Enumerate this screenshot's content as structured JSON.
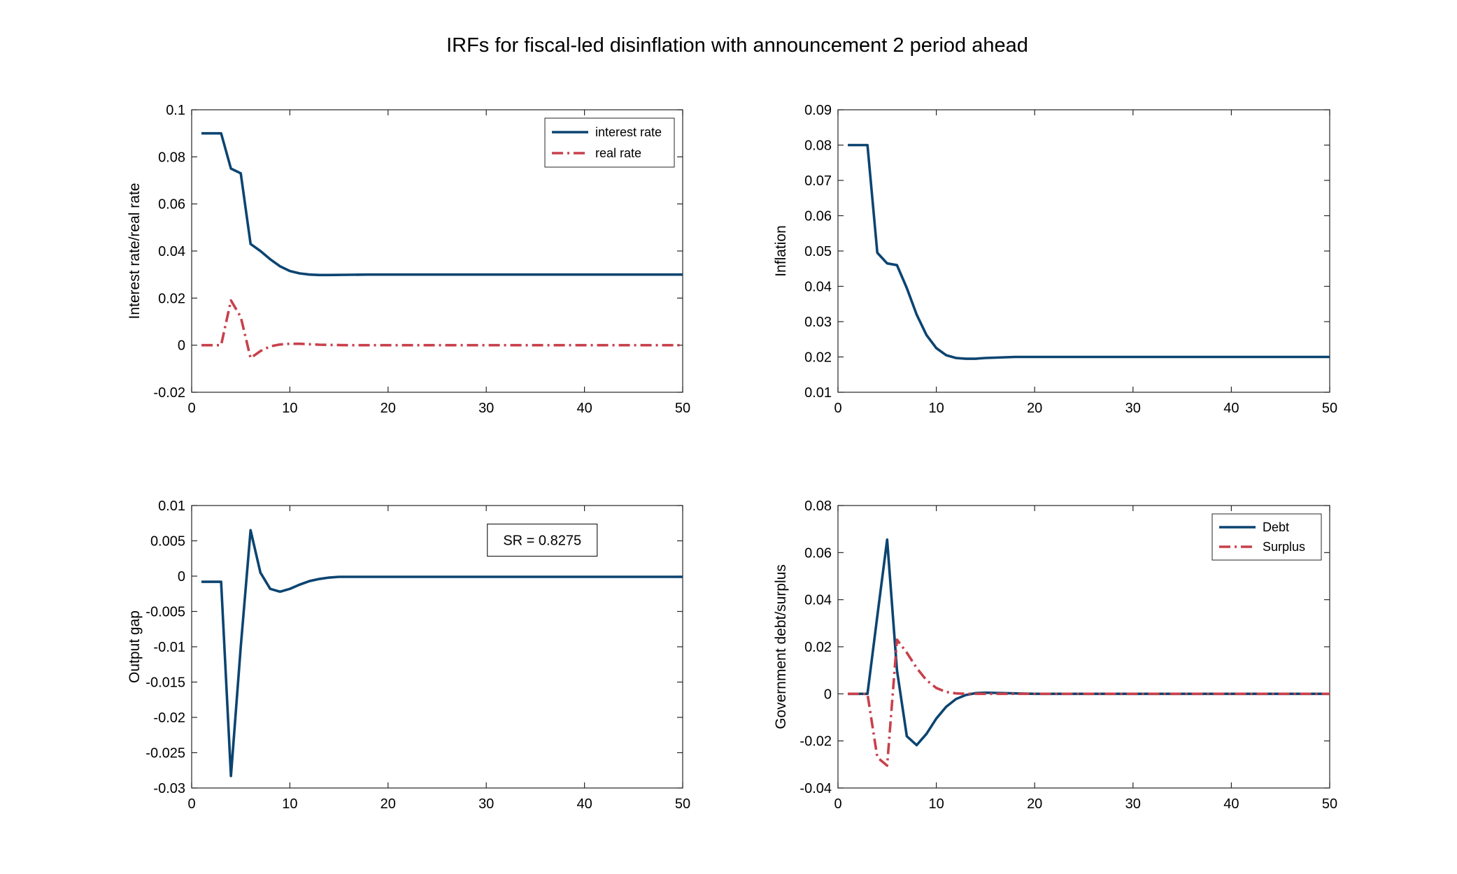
{
  "figure": {
    "title": "IRFs for fiscal-led disinflation with announcement 2 period ahead"
  },
  "colors": {
    "blue": "#0b4471",
    "red": "#c8404b",
    "axis": "#262626"
  },
  "chart_data": [
    {
      "id": "panel-interest",
      "type": "line",
      "title": "",
      "xlabel": "",
      "ylabel": "Interest rate/real rate",
      "xlim": [
        0,
        50
      ],
      "ylim": [
        -0.02,
        0.1
      ],
      "xticks": [
        0,
        10,
        20,
        30,
        40,
        50
      ],
      "yticks": [
        -0.02,
        0,
        0.02,
        0.04,
        0.06,
        0.08,
        0.1
      ],
      "ytick_labels": [
        "-0.02",
        "0",
        "0.02",
        "0.04",
        "0.06",
        "0.08",
        "0.1"
      ],
      "grid": false,
      "legend": "top-right",
      "series": [
        {
          "name": "interest rate",
          "color": "#0b4471",
          "style": "solid",
          "x": [
            1,
            2,
            3,
            4,
            5,
            6,
            7,
            8,
            9,
            10,
            11,
            12,
            13,
            14,
            16,
            18,
            20,
            25,
            30,
            40,
            50
          ],
          "y": [
            0.09,
            0.09,
            0.09,
            0.075,
            0.073,
            0.043,
            0.04,
            0.0365,
            0.0335,
            0.0315,
            0.0305,
            0.03,
            0.0298,
            0.0298,
            0.0299,
            0.03,
            0.03,
            0.03,
            0.03,
            0.03,
            0.03
          ]
        },
        {
          "name": "real rate",
          "color": "#c8404b",
          "style": "dashdot",
          "x": [
            1,
            2,
            3,
            4,
            5,
            6,
            7,
            8,
            9,
            10,
            11,
            12,
            13,
            14,
            16,
            20,
            30,
            40,
            50
          ],
          "y": [
            0,
            0,
            0,
            0.019,
            0.012,
            -0.0055,
            -0.0025,
            -0.0005,
            0.0003,
            0.0006,
            0.0006,
            0.0004,
            0.0002,
            0.0001,
            0,
            0,
            0,
            0,
            0
          ]
        }
      ]
    },
    {
      "id": "panel-inflation",
      "type": "line",
      "title": "",
      "xlabel": "",
      "ylabel": "Inflation",
      "xlim": [
        0,
        50
      ],
      "ylim": [
        0.01,
        0.09
      ],
      "xticks": [
        0,
        10,
        20,
        30,
        40,
        50
      ],
      "yticks": [
        0.01,
        0.02,
        0.03,
        0.04,
        0.05,
        0.06,
        0.07,
        0.08,
        0.09
      ],
      "ytick_labels": [
        "0.01",
        "0.02",
        "0.03",
        "0.04",
        "0.05",
        "0.06",
        "0.07",
        "0.08",
        "0.09"
      ],
      "grid": false,
      "legend": "none",
      "series": [
        {
          "color": "#0b4471",
          "style": "solid",
          "x": [
            1,
            2,
            3,
            4,
            5,
            6,
            7,
            8,
            9,
            10,
            11,
            12,
            13,
            14,
            15,
            16,
            18,
            20,
            30,
            40,
            50
          ],
          "y": [
            0.08,
            0.08,
            0.08,
            0.0495,
            0.0465,
            0.046,
            0.0395,
            0.032,
            0.0262,
            0.0225,
            0.0205,
            0.0197,
            0.0195,
            0.0195,
            0.0197,
            0.0198,
            0.02,
            0.02,
            0.02,
            0.02,
            0.02
          ]
        }
      ]
    },
    {
      "id": "panel-output",
      "type": "line",
      "title": "",
      "xlabel": "",
      "ylabel": "Output gap",
      "xlim": [
        0,
        50
      ],
      "ylim": [
        -0.03,
        0.01
      ],
      "xticks": [
        0,
        10,
        20,
        30,
        40,
        50
      ],
      "yticks": [
        -0.03,
        -0.025,
        -0.02,
        -0.015,
        -0.01,
        -0.005,
        0,
        0.005,
        0.01
      ],
      "ytick_labels": [
        "-0.03",
        "-0.025",
        "-0.02",
        "-0.015",
        "-0.01",
        "-0.005",
        "0",
        "0.005",
        "0.01"
      ],
      "grid": false,
      "legend": "none",
      "annotation": {
        "text": "SR = 0.8275",
        "x": 35.7,
        "y": 0.0051
      },
      "series": [
        {
          "color": "#0b4471",
          "style": "solid",
          "x": [
            1,
            2,
            3,
            4,
            5,
            6,
            7,
            8,
            9,
            10,
            11,
            12,
            13,
            14,
            15,
            16,
            18,
            20,
            30,
            40,
            50
          ],
          "y": [
            -0.0008,
            -0.0008,
            -0.0008,
            -0.0283,
            -0.01,
            0.0065,
            0.0005,
            -0.0018,
            -0.0022,
            -0.0018,
            -0.0012,
            -0.0007,
            -0.0004,
            -0.0002,
            -0.0001,
            -0.0001,
            -0.0001,
            -0.0001,
            -0.0001,
            -0.0001,
            -0.0001
          ]
        }
      ]
    },
    {
      "id": "panel-debt",
      "type": "line",
      "title": "",
      "xlabel": "",
      "ylabel": "Government debt/surplus",
      "xlim": [
        0,
        50
      ],
      "ylim": [
        -0.04,
        0.08
      ],
      "xticks": [
        0,
        10,
        20,
        30,
        40,
        50
      ],
      "yticks": [
        -0.04,
        -0.02,
        0,
        0.02,
        0.04,
        0.06,
        0.08
      ],
      "ytick_labels": [
        "-0.04",
        "-0.02",
        "0",
        "0.02",
        "0.04",
        "0.06",
        "0.08"
      ],
      "grid": false,
      "legend": "top-right",
      "series": [
        {
          "name": "Debt",
          "color": "#0b4471",
          "style": "solid",
          "x": [
            1,
            2,
            3,
            4,
            5,
            6,
            7,
            8,
            9,
            10,
            11,
            12,
            13,
            14,
            15,
            16,
            18,
            20,
            30,
            40,
            50
          ],
          "y": [
            0,
            0,
            0,
            0.033,
            0.0655,
            0.01,
            -0.018,
            -0.0218,
            -0.017,
            -0.0105,
            -0.0055,
            -0.0022,
            -0.0005,
            0.0003,
            0.0005,
            0.0004,
            0.0002,
            0,
            0,
            0,
            0
          ]
        },
        {
          "name": "Surplus",
          "color": "#c8404b",
          "style": "dashdot",
          "x": [
            1,
            2,
            3,
            4,
            5,
            6,
            7,
            8,
            9,
            10,
            11,
            12,
            13,
            14,
            16,
            20,
            30,
            40,
            50
          ],
          "y": [
            0,
            0,
            0,
            -0.027,
            -0.0305,
            0.023,
            0.0175,
            0.011,
            0.0058,
            0.0025,
            0.0008,
            0.0002,
            0,
            0,
            0,
            0,
            0,
            0,
            0
          ]
        }
      ]
    }
  ]
}
